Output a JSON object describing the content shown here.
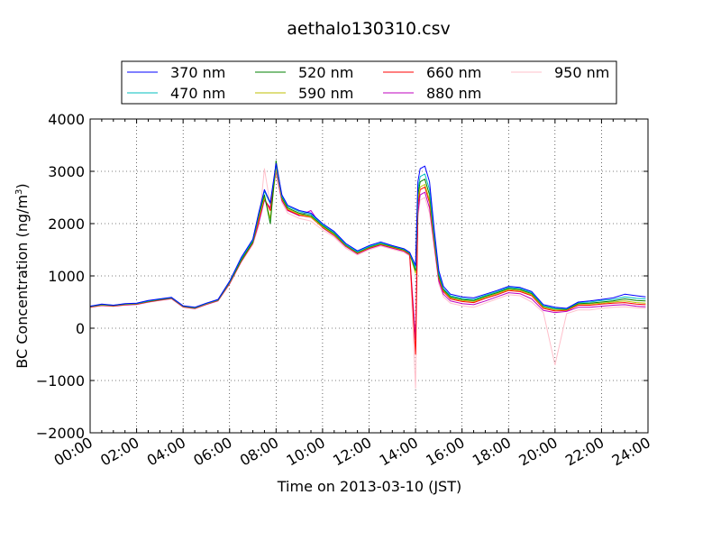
{
  "chart_data": {
    "type": "line",
    "title": "aethalo130310.csv",
    "xlabel": "Time on 2013-03-10 (JST)",
    "ylabel_main": "BC Concentration (ng/m",
    "ylabel_sup": "3",
    "ylabel_close": ")",
    "xlim_hours": [
      0,
      24
    ],
    "ylim": [
      -2000,
      4000
    ],
    "x_ticks": [
      {
        "hour": 0,
        "label": "00:00"
      },
      {
        "hour": 2,
        "label": "02:00"
      },
      {
        "hour": 4,
        "label": "04:00"
      },
      {
        "hour": 6,
        "label": "06:00"
      },
      {
        "hour": 8,
        "label": "08:00"
      },
      {
        "hour": 10,
        "label": "10:00"
      },
      {
        "hour": 12,
        "label": "12:00"
      },
      {
        "hour": 14,
        "label": "14:00"
      },
      {
        "hour": 16,
        "label": "16:00"
      },
      {
        "hour": 18,
        "label": "18:00"
      },
      {
        "hour": 20,
        "label": "20:00"
      },
      {
        "hour": 22,
        "label": "22:00"
      },
      {
        "hour": 24,
        "label": "24:00"
      }
    ],
    "y_ticks": [
      {
        "value": -2000,
        "label": "−2000"
      },
      {
        "value": -1000,
        "label": "−1000"
      },
      {
        "value": 0,
        "label": "0"
      },
      {
        "value": 1000,
        "label": "1000"
      },
      {
        "value": 2000,
        "label": "2000"
      },
      {
        "value": 3000,
        "label": "3000"
      },
      {
        "value": 4000,
        "label": "4000"
      }
    ],
    "grid": true,
    "legend_position": "top",
    "x_hours": [
      0,
      0.5,
      1,
      1.5,
      2,
      2.5,
      3,
      3.5,
      4,
      4.5,
      5,
      5.5,
      6,
      6.5,
      7,
      7.25,
      7.5,
      7.75,
      8,
      8.25,
      8.5,
      9,
      9.5,
      10,
      10.5,
      11,
      11.5,
      12,
      12.5,
      13,
      13.5,
      13.75,
      14,
      14.1,
      14.2,
      14.4,
      14.6,
      14.8,
      15,
      15.2,
      15.5,
      16,
      16.5,
      17,
      17.5,
      18,
      18.5,
      19,
      19.5,
      20,
      20.5,
      21,
      21.5,
      22,
      22.5,
      23,
      23.5,
      23.9
    ],
    "series": [
      {
        "name": "370 nm",
        "color": "#0000ff",
        "values": [
          420,
          460,
          440,
          470,
          480,
          530,
          560,
          590,
          430,
          400,
          480,
          550,
          900,
          1350,
          1700,
          2200,
          2650,
          2400,
          3150,
          2550,
          2350,
          2250,
          2200,
          2000,
          1850,
          1620,
          1480,
          1580,
          1650,
          1580,
          1520,
          1450,
          1200,
          2800,
          3050,
          3100,
          2800,
          1900,
          1100,
          800,
          650,
          600,
          580,
          650,
          720,
          800,
          780,
          700,
          450,
          400,
          380,
          500,
          520,
          550,
          580,
          650,
          620,
          600
        ]
      },
      {
        "name": "470 nm",
        "color": "#00bfbf",
        "values": [
          420,
          455,
          440,
          465,
          475,
          520,
          555,
          585,
          425,
          395,
          475,
          545,
          890,
          1330,
          1680,
          2180,
          2620,
          2380,
          3120,
          2520,
          2330,
          2230,
          2180,
          1980,
          1830,
          1600,
          1460,
          1560,
          1630,
          1570,
          1510,
          1440,
          1150,
          2650,
          2900,
          2950,
          2650,
          1800,
          1050,
          760,
          620,
          570,
          550,
          630,
          700,
          780,
          760,
          680,
          430,
          380,
          370,
          490,
          500,
          530,
          550,
          600,
          570,
          560
        ]
      },
      {
        "name": "520 nm",
        "color": "#008000",
        "values": [
          415,
          450,
          435,
          460,
          470,
          515,
          550,
          580,
          420,
          390,
          470,
          540,
          880,
          1300,
          1650,
          2150,
          2550,
          2000,
          3200,
          2500,
          2300,
          2200,
          2150,
          1960,
          1810,
          1590,
          1450,
          1550,
          1620,
          1560,
          1500,
          1430,
          1100,
          2550,
          2800,
          2850,
          2550,
          1750,
          1000,
          740,
          600,
          550,
          530,
          610,
          680,
          760,
          740,
          660,
          420,
          370,
          360,
          470,
          480,
          500,
          520,
          560,
          530,
          520
        ]
      },
      {
        "name": "590 nm",
        "color": "#bfbf00",
        "values": [
          410,
          445,
          430,
          455,
          465,
          510,
          545,
          575,
          415,
          385,
          465,
          535,
          870,
          1290,
          1640,
          2100,
          2500,
          2100,
          3050,
          2480,
          2280,
          2180,
          2130,
          1940,
          1790,
          1580,
          1440,
          1540,
          1610,
          1550,
          1490,
          1420,
          1050,
          2450,
          2700,
          2750,
          2450,
          1700,
          980,
          720,
          580,
          530,
          510,
          590,
          660,
          740,
          720,
          640,
          400,
          350,
          350,
          460,
          460,
          480,
          500,
          520,
          490,
          480
        ]
      },
      {
        "name": "660 nm",
        "color": "#ff0000",
        "values": [
          405,
          440,
          425,
          450,
          460,
          505,
          540,
          570,
          410,
          380,
          460,
          530,
          860,
          1280,
          1630,
          2050,
          2480,
          2250,
          3100,
          2460,
          2260,
          2160,
          2120,
          1930,
          1780,
          1570,
          1430,
          1530,
          1600,
          1540,
          1480,
          1410,
          -500,
          2350,
          2650,
          2700,
          2400,
          1650,
          950,
          700,
          560,
          510,
          490,
          570,
          640,
          720,
          700,
          620,
          380,
          330,
          340,
          440,
          440,
          460,
          480,
          490,
          460,
          450
        ]
      },
      {
        "name": "880 nm",
        "color": "#bf00bf",
        "values": [
          400,
          435,
          420,
          445,
          455,
          500,
          535,
          565,
          405,
          375,
          455,
          525,
          850,
          1270,
          1620,
          2000,
          2450,
          2300,
          3000,
          2440,
          2250,
          2150,
          2250,
          1920,
          1770,
          1560,
          1420,
          1520,
          1590,
          1530,
          1470,
          1400,
          -200,
          2200,
          2550,
          2600,
          2300,
          1600,
          900,
          650,
          520,
          470,
          450,
          520,
          600,
          680,
          660,
          560,
          340,
          300,
          320,
          400,
          400,
          420,
          440,
          450,
          420,
          410
        ]
      },
      {
        "name": "950 nm",
        "color": "#ffc0cb",
        "values": [
          395,
          430,
          415,
          440,
          450,
          495,
          530,
          560,
          400,
          370,
          450,
          520,
          840,
          1260,
          1600,
          1950,
          3050,
          2350,
          2950,
          2400,
          2200,
          2100,
          2050,
          1880,
          1740,
          1530,
          1400,
          1500,
          1570,
          1510,
          1450,
          1380,
          -1150,
          2100,
          2450,
          2500,
          2200,
          1550,
          850,
          600,
          480,
          430,
          400,
          480,
          560,
          640,
          620,
          500,
          300,
          -700,
          280,
          350,
          350,
          380,
          400,
          410,
          390,
          380
        ]
      }
    ]
  }
}
